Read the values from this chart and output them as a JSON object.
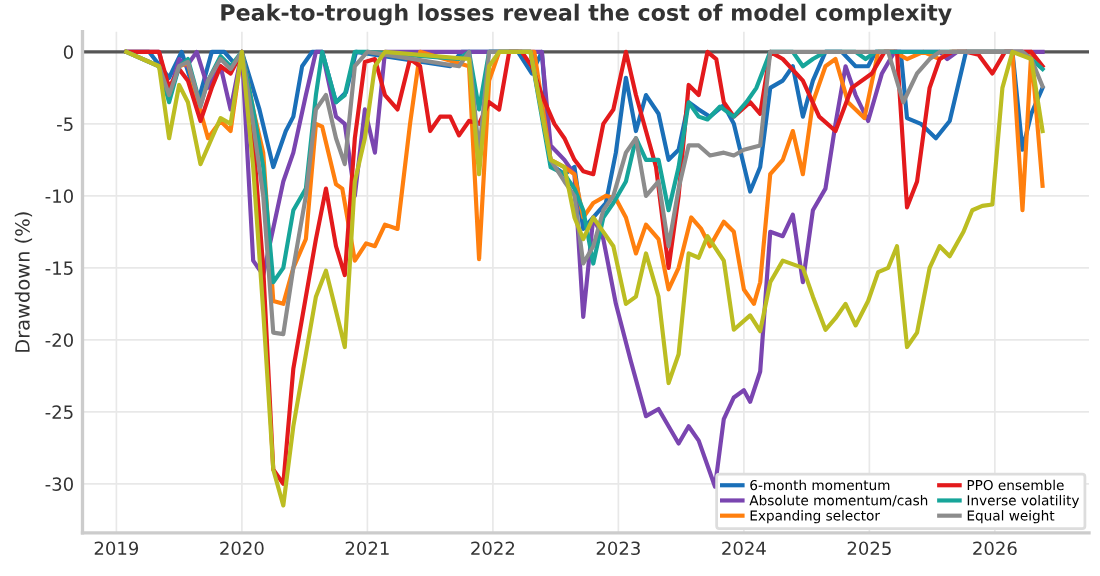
{
  "chart_data": {
    "type": "line",
    "title": "Peak-to-trough losses reveal the cost of model complexity",
    "ylabel": "Drawdown (%)",
    "xlim": [
      2018.73,
      2026.75
    ],
    "xticks": [
      2019,
      2020,
      2021,
      2022,
      2023,
      2024,
      2025,
      2026
    ],
    "ylim": [
      -33.4,
      1.4
    ],
    "yticks": [
      -30,
      -25,
      -20,
      -15,
      -10,
      -5,
      0
    ],
    "grid": true,
    "legend": "bottom right",
    "line_style": "solid",
    "marker": "none",
    "ref_lines": [
      {
        "axis": "y",
        "value": 0,
        "color": "#555555"
      }
    ],
    "series": [
      {
        "name": "6-month momentum",
        "color": "#1a6fb8",
        "x": [
          2019.08,
          2019.26,
          2019.42,
          2019.52,
          2019.65,
          2019.76,
          2019.86,
          2019.94,
          2020.0,
          2020.14,
          2020.25,
          2020.35,
          2020.41,
          2020.48,
          2020.56,
          2020.64,
          2020.75,
          2020.83,
          2020.91,
          2021.66,
          2021.75,
          2022.2,
          2022.31,
          2022.39,
          2022.46,
          2022.57,
          2022.65,
          2022.72,
          2022.8,
          2022.9,
          2022.98,
          2023.06,
          2023.14,
          2023.22,
          2023.32,
          2023.4,
          2023.48,
          2023.56,
          2023.64,
          2023.73,
          2023.84,
          2023.92,
          2024.05,
          2024.13,
          2024.21,
          2024.31,
          2024.39,
          2024.47,
          2024.55,
          2024.65,
          2024.78,
          2024.89,
          2024.99,
          2025.05,
          2025.25,
          2025.3,
          2025.41,
          2025.53,
          2025.64,
          2025.77,
          2026.14,
          2026.22,
          2026.29,
          2026.38
        ],
        "values": [
          0,
          0,
          -1.8,
          0,
          -3.5,
          0,
          0,
          -0.8,
          0,
          -4,
          -8,
          -5.5,
          -4.5,
          -1,
          0,
          0,
          -3.5,
          -2.8,
          0,
          -1,
          0,
          0,
          -1.5,
          0,
          -7.8,
          -8.5,
          -8,
          -12.3,
          -11.5,
          -10.5,
          -7,
          -1.8,
          -5.5,
          -3,
          -4.3,
          -7.5,
          -6.8,
          -3.5,
          -4,
          -4.5,
          -3.7,
          -5,
          -9.7,
          -8,
          -2.5,
          -2,
          -1,
          -4.5,
          -2,
          0,
          0,
          -1,
          -1,
          0,
          0,
          -4.6,
          -5,
          -6,
          -4.8,
          0,
          0,
          -6.8,
          -4.3,
          -2.5
        ]
      },
      {
        "name": "Absolute momentum/cash",
        "color": "#7a45b0",
        "x": [
          2019.08,
          2019.34,
          2019.42,
          2019.5,
          2019.56,
          2019.64,
          2019.73,
          2019.83,
          2019.91,
          2020.0,
          2020.09,
          2020.17,
          2020.33,
          2020.41,
          2020.51,
          2020.59,
          2020.64,
          2020.75,
          2020.82,
          2020.9,
          2020.98,
          2021.06,
          2021.14,
          2022.39,
          2022.46,
          2022.57,
          2022.65,
          2022.72,
          2022.8,
          2022.88,
          2022.98,
          2023.1,
          2023.22,
          2023.32,
          2023.4,
          2023.48,
          2023.56,
          2023.64,
          2023.77,
          2023.84,
          2023.92,
          2024.0,
          2024.05,
          2024.13,
          2024.21,
          2024.31,
          2024.39,
          2024.47,
          2024.55,
          2024.65,
          2024.73,
          2024.81,
          2024.89,
          2024.99,
          2025.1,
          2025.2,
          2025.56,
          2025.62,
          2025.7,
          2026.38
        ],
        "values": [
          0,
          0,
          -3,
          -0.5,
          -1,
          0,
          -2.5,
          -1,
          -4,
          0,
          -14.5,
          -15.5,
          -9,
          -7,
          -3,
          0,
          0,
          -4.5,
          -5,
          -10,
          -4,
          -7,
          0,
          0,
          -6.5,
          -7.5,
          -8.5,
          -18.4,
          -11.5,
          -13,
          -17.5,
          -21.5,
          -25.3,
          -24.8,
          -26,
          -27.2,
          -26,
          -27,
          -30.2,
          -25.5,
          -24,
          -23.5,
          -24.3,
          -22.2,
          -12.5,
          -12.8,
          -11.3,
          -16,
          -11,
          -9.5,
          -5,
          -1,
          -3,
          -4.8,
          -1.5,
          0,
          0,
          -0.5,
          0,
          0
        ]
      },
      {
        "name": "Expanding selector",
        "color": "#ff7f0e",
        "x": [
          2019.42,
          2019.5,
          2019.57,
          2019.65,
          2019.73,
          2019.83,
          2019.91,
          2020.0,
          2020.09,
          2020.17,
          2020.25,
          2020.33,
          2020.41,
          2020.51,
          2020.59,
          2020.64,
          2020.75,
          2020.8,
          2020.9,
          2020.99,
          2021.06,
          2021.14,
          2021.24,
          2021.34,
          2021.42,
          2021.81,
          2021.89,
          2021.97,
          2022.05,
          2022.33,
          2022.46,
          2022.57,
          2022.65,
          2022.72,
          2022.8,
          2022.9,
          2022.98,
          2023.06,
          2023.14,
          2023.22,
          2023.32,
          2023.4,
          2023.48,
          2023.58,
          2023.66,
          2023.73,
          2023.84,
          2023.92,
          2024.0,
          2024.08,
          2024.13,
          2024.21,
          2024.31,
          2024.39,
          2024.47,
          2024.55,
          2024.65,
          2024.73,
          2024.83,
          2024.96,
          2025.07,
          2025.2,
          2025.3,
          2025.43,
          2025.56,
          2025.64,
          2026.14,
          2026.22,
          2026.29,
          2026.38
        ],
        "values": [
          -3,
          -1,
          -0.8,
          -3.5,
          -6,
          -4.8,
          -5.5,
          0,
          -4,
          -7,
          -17.3,
          -17.5,
          -15,
          -13,
          -5,
          -5.2,
          -9.2,
          -9.5,
          -14.5,
          -13.3,
          -13.5,
          -12,
          -12.3,
          -5,
          0,
          -1,
          -14.4,
          -2,
          0,
          0,
          -7.5,
          -8,
          -8.5,
          -11.5,
          -10.5,
          -10,
          -10.2,
          -11.5,
          -14,
          -12,
          -13,
          -16.5,
          -15,
          -11.5,
          -12.3,
          -13.5,
          -11.8,
          -12.5,
          -16.5,
          -17.5,
          -16,
          -8.5,
          -7.5,
          -5.5,
          -8.5,
          -3.5,
          -1,
          -0.5,
          -3.5,
          -4.6,
          0,
          0,
          -0.5,
          0,
          -0.5,
          0,
          0,
          -11,
          0,
          -9.3
        ]
      },
      {
        "name": "PPO ensemble",
        "color": "#e31a1c",
        "x": [
          2019.08,
          2019.34,
          2019.42,
          2019.5,
          2019.57,
          2019.67,
          2019.76,
          2019.83,
          2019.91,
          2020.0,
          2020.09,
          2020.17,
          2020.25,
          2020.33,
          2020.41,
          2020.51,
          2020.59,
          2020.67,
          2020.75,
          2020.82,
          2020.9,
          2020.98,
          2021.06,
          2021.14,
          2021.24,
          2021.34,
          2021.42,
          2021.5,
          2021.58,
          2021.66,
          2021.73,
          2021.81,
          2021.89,
          2021.97,
          2022.05,
          2022.13,
          2022.23,
          2022.31,
          2022.39,
          2022.49,
          2022.57,
          2022.65,
          2022.72,
          2022.8,
          2022.88,
          2022.96,
          2023.06,
          2023.14,
          2023.22,
          2023.3,
          2023.4,
          2023.48,
          2023.56,
          2023.64,
          2023.71,
          2023.78,
          2023.84,
          2023.92,
          2024.05,
          2024.13,
          2024.21,
          2024.31,
          2024.47,
          2024.6,
          2024.73,
          2024.86,
          2025.02,
          2025.12,
          2025.22,
          2025.3,
          2025.38,
          2025.48,
          2025.56,
          2025.66,
          2025.77,
          2025.87,
          2025.98,
          2026.08,
          2026.29,
          2026.38
        ],
        "values": [
          0,
          0,
          -2.5,
          -1.2,
          -2,
          -4.8,
          -2.5,
          -1,
          -1.5,
          0,
          -6,
          -15,
          -29,
          -30,
          -22,
          -17,
          -13,
          -9.5,
          -13.5,
          -15.5,
          -6,
          -0.7,
          -0.5,
          -3,
          -4,
          -0.5,
          -1,
          -5.5,
          -4.5,
          -4.5,
          -5.8,
          -4.8,
          -5,
          -3.5,
          -4,
          0,
          0,
          -1,
          -3,
          -5,
          -6,
          -7.5,
          -8.3,
          -8.5,
          -5,
          -4,
          0,
          -3,
          -5.5,
          -8,
          -15,
          -10,
          -2.3,
          -3,
          0,
          -0.5,
          -3.5,
          -4.5,
          -3.5,
          -4.3,
          0,
          -0.5,
          -2,
          -4.5,
          -5.5,
          -2.5,
          -1.5,
          0,
          0,
          -10.8,
          -9,
          -2.5,
          -0.5,
          0,
          0,
          -0.2,
          -1.5,
          0,
          0,
          -1
        ]
      },
      {
        "name": "Inverse volatility",
        "color": "#17a59a",
        "x": [
          2019.08,
          2019.34,
          2019.42,
          2019.5,
          2019.57,
          2019.67,
          2019.73,
          2019.83,
          2019.91,
          2020.0,
          2020.09,
          2020.17,
          2020.25,
          2020.33,
          2020.41,
          2020.51,
          2020.59,
          2020.64,
          2020.75,
          2020.82,
          2020.9,
          2021.0,
          2021.73,
          2021.81,
          2021.89,
          2021.97,
          2022.3,
          2022.46,
          2022.57,
          2022.65,
          2022.72,
          2022.8,
          2022.88,
          2022.96,
          2023.06,
          2023.14,
          2023.22,
          2023.32,
          2023.4,
          2023.48,
          2023.56,
          2023.64,
          2023.71,
          2023.81,
          2023.92,
          2024.02,
          2024.1,
          2024.21,
          2024.39,
          2024.47,
          2024.55,
          2024.65,
          2024.89,
          2024.97,
          2025.05,
          2026.22,
          2026.29,
          2026.38
        ],
        "values": [
          0,
          -1,
          -3.5,
          -1,
          -0.5,
          -3.7,
          -2,
          -0.3,
          -1,
          0,
          -4,
          -8,
          -16,
          -15,
          -11,
          -9.5,
          -3,
          0,
          -3.5,
          -3,
          0,
          0,
          -0.5,
          0,
          -4,
          0,
          0,
          -8,
          -8.5,
          -9.5,
          -11,
          -14.7,
          -11.5,
          -10.5,
          -9,
          -6,
          -7.5,
          -7.5,
          -11,
          -8,
          -3.5,
          -4.5,
          -4.7,
          -3.8,
          -4.5,
          -3.5,
          -2.5,
          0,
          0,
          -1,
          -0.5,
          0,
          0,
          -0.5,
          0,
          0,
          -0.5,
          -1.2
        ]
      },
      {
        "name": "Equal weight",
        "color": "#8c8c8c",
        "x": [
          2019.08,
          2019.34,
          2019.42,
          2019.5,
          2019.57,
          2019.67,
          2019.73,
          2019.83,
          2019.91,
          2020.0,
          2020.09,
          2020.17,
          2020.25,
          2020.33,
          2020.41,
          2020.51,
          2020.59,
          2020.67,
          2020.75,
          2020.82,
          2020.9,
          2021.0,
          2021.73,
          2021.81,
          2021.89,
          2021.97,
          2022.3,
          2022.46,
          2022.57,
          2022.65,
          2022.72,
          2022.8,
          2022.88,
          2022.96,
          2023.06,
          2023.14,
          2023.22,
          2023.32,
          2023.4,
          2023.48,
          2023.56,
          2023.64,
          2023.73,
          2023.84,
          2023.92,
          2024.0,
          2024.13,
          2024.21,
          2024.31,
          2024.47,
          2024.65,
          2025.15,
          2025.27,
          2025.38,
          2025.48,
          2025.56,
          2026.22,
          2026.29,
          2026.38
        ],
        "values": [
          0,
          -1,
          -3,
          -1,
          -0.7,
          -3.8,
          -2,
          -0.5,
          -1.2,
          0,
          -5,
          -10,
          -19.5,
          -19.6,
          -15,
          -10,
          -4,
          -3,
          -6,
          -7.8,
          -1,
          0,
          -1,
          0,
          -7,
          0,
          0,
          -7.5,
          -9,
          -10,
          -14.7,
          -13.5,
          -11,
          -10,
          -7,
          -6,
          -10,
          -9,
          -13.5,
          -9.5,
          -6.5,
          -6.5,
          -7.2,
          -7,
          -7.2,
          -6.8,
          -6.5,
          0,
          0,
          0,
          0,
          0,
          -3.5,
          -1.5,
          -0.5,
          0,
          0,
          -0.5,
          -2.4
        ]
      },
      {
        "color": "#bcbd22",
        "x": [
          2019.08,
          2019.34,
          2019.42,
          2019.5,
          2019.57,
          2019.67,
          2019.76,
          2019.83,
          2019.91,
          2020.0,
          2020.09,
          2020.17,
          2020.25,
          2020.33,
          2020.41,
          2020.51,
          2020.59,
          2020.67,
          2020.75,
          2020.82,
          2020.9,
          2020.98,
          2021.06,
          2021.14,
          2021.81,
          2021.89,
          2021.97,
          2022.05,
          2022.3,
          2022.46,
          2022.57,
          2022.65,
          2022.72,
          2022.8,
          2022.88,
          2022.96,
          2023.06,
          2023.14,
          2023.22,
          2023.32,
          2023.4,
          2023.48,
          2023.56,
          2023.64,
          2023.71,
          2023.84,
          2023.92,
          2024.05,
          2024.13,
          2024.21,
          2024.31,
          2024.47,
          2024.55,
          2024.65,
          2024.73,
          2024.81,
          2024.89,
          2024.99,
          2025.07,
          2025.15,
          2025.22,
          2025.3,
          2025.38,
          2025.48,
          2025.56,
          2025.64,
          2025.75,
          2025.82,
          2025.9,
          2025.98,
          2026.06,
          2026.14,
          2026.29,
          2026.38
        ],
        "values": [
          0,
          -1,
          -6,
          -2.3,
          -3.5,
          -7.8,
          -6,
          -4.6,
          -5,
          0,
          -8,
          -18,
          -29,
          -31.5,
          -26,
          -21,
          -17,
          -15.2,
          -18,
          -20.5,
          -9,
          -6,
          -1,
          0,
          -0.5,
          -8.5,
          -1,
          0,
          0,
          -7.5,
          -8,
          -11.5,
          -13,
          -11.5,
          -12.5,
          -13.5,
          -17.5,
          -17,
          -14,
          -17,
          -23,
          -21,
          -14,
          -14.3,
          -12.8,
          -14.5,
          -19.3,
          -18.3,
          -19.4,
          -16,
          -14.5,
          -15,
          -17,
          -19.3,
          -18.5,
          -17.5,
          -19,
          -17.3,
          -15.3,
          -15,
          -13.5,
          -20.5,
          -19.5,
          -15,
          -13.5,
          -14.2,
          -12.5,
          -11,
          -10.7,
          -10.6,
          -2.5,
          0,
          -0.5,
          -5.5
        ]
      }
    ]
  }
}
